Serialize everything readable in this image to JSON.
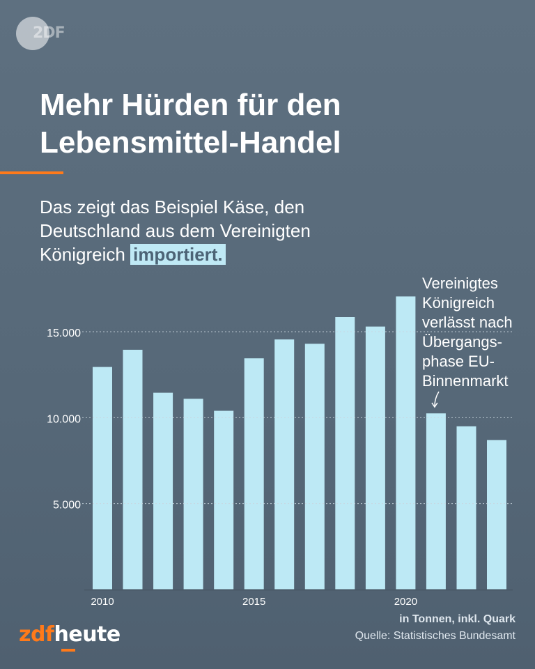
{
  "brand": {
    "badge_text": "2DF",
    "logo_prefix": "zdf",
    "logo_suffix": "heute"
  },
  "headline": {
    "line1": "Mehr Hürden für den",
    "line2": "Lebensmittel-Handel"
  },
  "subtitle": {
    "line1": "Das zeigt das Beispiel Käse, den",
    "line2": "Deutschland aus dem Vereinigten",
    "line3_plain": "Königreich",
    "line3_highlight": "importiert."
  },
  "annotation": {
    "lines": [
      "Vereinigtes",
      "Königreich",
      "verlässt nach",
      "Übergangs-",
      "phase EU-",
      "Binnenmarkt"
    ]
  },
  "footer": {
    "unit": "in Tonnen, inkl. Quark",
    "source": "Quelle: Statistisches Bundesamt"
  },
  "colors": {
    "background": "#586a7a",
    "bar": "#bde9f5",
    "accent": "#ff7a1a",
    "highlight_bg": "#bfe9f5"
  },
  "chart_data": {
    "type": "bar",
    "categories": [
      2010,
      2011,
      2012,
      2013,
      2014,
      2015,
      2016,
      2017,
      2018,
      2019,
      2020,
      2021,
      2022,
      2023
    ],
    "values": [
      12950,
      13950,
      11450,
      11100,
      10400,
      13450,
      14550,
      14300,
      15850,
      15300,
      17050,
      10250,
      9500,
      8700
    ],
    "x_tick_labels": [
      "2010",
      "2015",
      "2020"
    ],
    "y_ticks": [
      5000,
      10000,
      15000
    ],
    "y_tick_labels": [
      "5.000",
      "10.000",
      "15.000"
    ],
    "ylim": [
      0,
      17500
    ],
    "grid": true,
    "annotation_target": 2021
  }
}
